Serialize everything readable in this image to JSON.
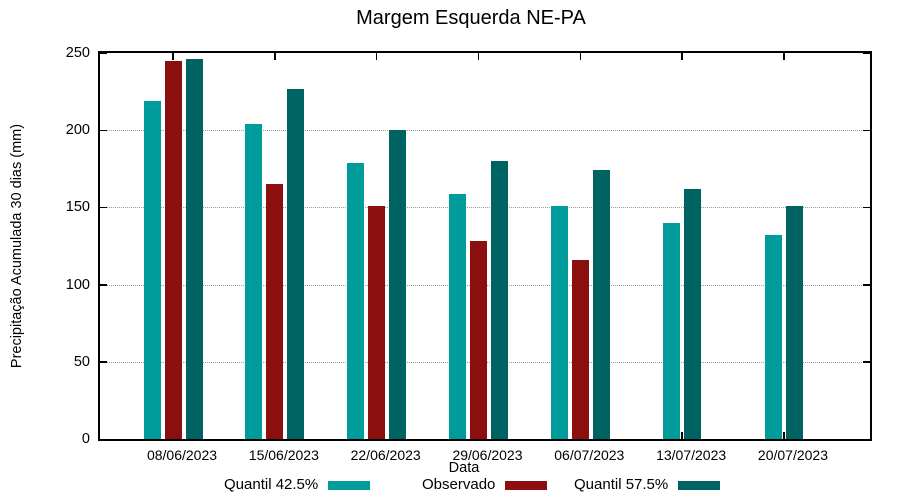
{
  "title": "Margem Esquerda NE-PA",
  "axes": {
    "y_label": "Precipitação Acumulada 30 dias (mm)",
    "x_label": "Data",
    "y_ticks": [
      0,
      50,
      100,
      150,
      200,
      250
    ],
    "grid_levels": [
      50,
      100,
      150,
      200
    ]
  },
  "colors": {
    "quantil_low": "#009C9C",
    "observado": "#8B0F0F",
    "quantil_high": "#006363",
    "grid": "#9a9a9a",
    "axis": "#000000"
  },
  "chart_data": {
    "type": "bar",
    "title": "Margem Esquerda NE-PA",
    "xlabel": "Data",
    "ylabel": "Precipitação Acumulada 30 dias (mm)",
    "ylim": [
      0,
      250
    ],
    "grid": "horizontal dotted every 50",
    "legend_position": "bottom",
    "categories": [
      "08/06/2023",
      "15/06/2023",
      "22/06/2023",
      "29/06/2023",
      "06/07/2023",
      "13/07/2023",
      "20/07/2023"
    ],
    "series": [
      {
        "name": "Quantil 42.5%",
        "color": "#009C9C",
        "values": [
          219,
          204,
          179,
          159,
          151,
          140,
          132
        ]
      },
      {
        "name": "Observado",
        "color": "#8B0F0F",
        "values": [
          245,
          165,
          151,
          128,
          116,
          null,
          null
        ]
      },
      {
        "name": "Quantil 57.5%",
        "color": "#006363",
        "values": [
          246,
          227,
          200,
          180,
          174,
          162,
          151
        ]
      }
    ]
  },
  "legend": {
    "entries": [
      {
        "label": "Quantil 42.5%",
        "color": "#009C9C"
      },
      {
        "label": "Observado",
        "color": "#8B0F0F"
      },
      {
        "label": "Quantil 57.5%",
        "color": "#006363"
      }
    ]
  }
}
